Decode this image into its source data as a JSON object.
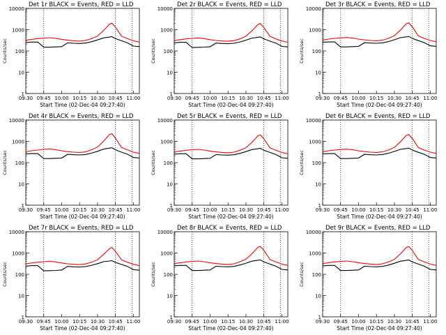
{
  "colors": {
    "background": "#ffffff",
    "events": "#000000",
    "lld": "#ff0000",
    "axes": "#000000"
  },
  "chart_data": [
    {
      "type": "line",
      "title": "Det 1r BLACK = Events, RED = LLD",
      "xlabel": "Start Time (02-Dec-04 09:27:40)",
      "ylabel": "Counts/sec",
      "yscale": "log",
      "ylim": [
        1,
        10000
      ],
      "x": [
        "09:30",
        "09:35",
        "09:40",
        "09:45",
        "09:50",
        "09:55",
        "10:00",
        "10:05",
        "10:10",
        "10:15",
        "10:20",
        "10:25",
        "10:30",
        "10:35",
        "10:40",
        "10:42",
        "10:45",
        "10:50",
        "10:55",
        "11:00",
        "11:05"
      ],
      "xticks": [
        "09:30",
        "09:45",
        "10:00",
        "10:15",
        "10:30",
        "10:45",
        "11:00"
      ],
      "yticks": [
        "1",
        "10",
        "100",
        "1000",
        "10000"
      ],
      "vlines": [
        "09:45",
        "10:45",
        "10:59"
      ],
      "series": [
        {
          "values": [
            320,
            350,
            380,
            400,
            420,
            390,
            350,
            320,
            300,
            290,
            310,
            380,
            500,
            900,
            1800,
            2000,
            1300,
            500,
            380,
            300,
            260
          ]
        },
        {
          "values": [
            250,
            260,
            260,
            150,
            150,
            155,
            160,
            240,
            230,
            225,
            235,
            270,
            330,
            410,
            450,
            470,
            380,
            300,
            240,
            170,
            160
          ]
        }
      ]
    },
    {
      "type": "line",
      "title": "Det 2r BLACK = Events, RED = LLD",
      "xlabel": "Start Time (02-Dec-04 09:27:40)",
      "ylabel": "Counts/sec",
      "yscale": "log",
      "ylim": [
        1,
        10000
      ],
      "x": [
        "09:30",
        "09:35",
        "09:40",
        "09:45",
        "09:50",
        "09:55",
        "10:00",
        "10:05",
        "10:10",
        "10:15",
        "10:20",
        "10:25",
        "10:30",
        "10:35",
        "10:40",
        "10:42",
        "10:45",
        "10:50",
        "10:55",
        "11:00",
        "11:05"
      ],
      "xticks": [
        "09:30",
        "09:45",
        "10:00",
        "10:15",
        "10:30",
        "10:45",
        "11:00"
      ],
      "yticks": [
        "1",
        "10",
        "100",
        "1000",
        "10000"
      ],
      "vlines": [
        "09:45",
        "10:45",
        "10:59"
      ],
      "series": [
        {
          "values": [
            310,
            340,
            370,
            390,
            410,
            380,
            340,
            310,
            295,
            285,
            305,
            370,
            490,
            880,
            1750,
            1950,
            1250,
            490,
            370,
            295,
            255
          ]
        },
        {
          "values": [
            240,
            255,
            255,
            145,
            148,
            152,
            158,
            235,
            225,
            220,
            230,
            265,
            320,
            400,
            440,
            460,
            370,
            290,
            235,
            165,
            155
          ]
        }
      ]
    },
    {
      "type": "line",
      "title": "Det 3r BLACK = Events, RED = LLD",
      "xlabel": "Start Time (02-Dec-04 09:27:40)",
      "ylabel": "Counts/sec",
      "yscale": "log",
      "ylim": [
        1,
        10000
      ],
      "x": [
        "09:30",
        "09:35",
        "09:40",
        "09:45",
        "09:50",
        "09:55",
        "10:00",
        "10:05",
        "10:10",
        "10:15",
        "10:20",
        "10:25",
        "10:30",
        "10:35",
        "10:40",
        "10:42",
        "10:45",
        "10:50",
        "10:55",
        "11:00",
        "11:05"
      ],
      "xticks": [
        "09:30",
        "09:45",
        "10:00",
        "10:15",
        "10:30",
        "10:45",
        "11:00"
      ],
      "yticks": [
        "1",
        "10",
        "100",
        "1000",
        "10000"
      ],
      "vlines": [
        "09:45",
        "10:45",
        "10:59"
      ],
      "series": [
        {
          "values": [
            330,
            360,
            390,
            410,
            430,
            400,
            360,
            330,
            310,
            300,
            320,
            390,
            520,
            950,
            1900,
            2100,
            1350,
            510,
            390,
            310,
            270
          ]
        },
        {
          "values": [
            255,
            265,
            265,
            155,
            155,
            160,
            165,
            245,
            235,
            230,
            240,
            275,
            335,
            420,
            460,
            480,
            390,
            305,
            245,
            175,
            165
          ]
        }
      ]
    },
    {
      "type": "line",
      "title": "Det 4r BLACK = Events, RED = LLD",
      "xlabel": "Start Time (02-Dec-04 09:27:40)",
      "ylabel": "Counts/sec",
      "yscale": "log",
      "ylim": [
        1,
        10000
      ],
      "x": [
        "09:30",
        "09:35",
        "09:40",
        "09:45",
        "09:50",
        "09:55",
        "10:00",
        "10:05",
        "10:10",
        "10:15",
        "10:20",
        "10:25",
        "10:30",
        "10:35",
        "10:40",
        "10:42",
        "10:45",
        "10:50",
        "10:55",
        "11:00",
        "11:05"
      ],
      "xticks": [
        "09:30",
        "09:45",
        "10:00",
        "10:15",
        "10:30",
        "10:45",
        "11:00"
      ],
      "yticks": [
        "1",
        "10",
        "100",
        "1000",
        "10000"
      ],
      "vlines": [
        "09:45",
        "10:45",
        "10:59"
      ],
      "series": [
        {
          "values": [
            330,
            360,
            390,
            420,
            440,
            400,
            360,
            330,
            310,
            300,
            320,
            400,
            540,
            1000,
            2100,
            2300,
            1400,
            520,
            400,
            310,
            270
          ]
        },
        {
          "values": [
            255,
            265,
            265,
            155,
            155,
            160,
            165,
            245,
            235,
            230,
            240,
            280,
            340,
            430,
            480,
            500,
            400,
            310,
            250,
            175,
            165
          ]
        }
      ]
    },
    {
      "type": "line",
      "title": "Det 5r BLACK = Events, RED = LLD",
      "xlabel": "Start Time (02-Dec-04 09:27:40)",
      "ylabel": "Counts/sec",
      "yscale": "log",
      "ylim": [
        1,
        10000
      ],
      "x": [
        "09:30",
        "09:35",
        "09:40",
        "09:45",
        "09:50",
        "09:55",
        "10:00",
        "10:05",
        "10:10",
        "10:15",
        "10:20",
        "10:25",
        "10:30",
        "10:35",
        "10:40",
        "10:42",
        "10:45",
        "10:50",
        "10:55",
        "11:00",
        "11:05"
      ],
      "xticks": [
        "09:30",
        "09:45",
        "10:00",
        "10:15",
        "10:30",
        "10:45",
        "11:00"
      ],
      "yticks": [
        "1",
        "10",
        "100",
        "1000",
        "10000"
      ],
      "vlines": [
        "09:45",
        "10:45",
        "10:59"
      ],
      "series": [
        {
          "values": [
            320,
            350,
            380,
            400,
            420,
            390,
            350,
            320,
            300,
            290,
            310,
            380,
            500,
            900,
            1800,
            2000,
            1300,
            500,
            380,
            300,
            260
          ]
        },
        {
          "values": [
            250,
            260,
            260,
            150,
            150,
            155,
            160,
            240,
            230,
            225,
            235,
            270,
            330,
            410,
            450,
            470,
            380,
            300,
            240,
            170,
            160
          ]
        }
      ]
    },
    {
      "type": "line",
      "title": "Det 6r BLACK = Events, RED = LLD",
      "xlabel": "Start Time (02-Dec-04 09:27:40)",
      "ylabel": "Counts/sec",
      "yscale": "log",
      "ylim": [
        1,
        10000
      ],
      "x": [
        "09:30",
        "09:35",
        "09:40",
        "09:45",
        "09:50",
        "09:55",
        "10:00",
        "10:05",
        "10:10",
        "10:15",
        "10:20",
        "10:25",
        "10:30",
        "10:35",
        "10:40",
        "10:42",
        "10:45",
        "10:50",
        "10:55",
        "11:00",
        "11:05"
      ],
      "xticks": [
        "09:30",
        "09:45",
        "10:00",
        "10:15",
        "10:30",
        "10:45",
        "11:00"
      ],
      "yticks": [
        "1",
        "10",
        "100",
        "1000",
        "10000"
      ],
      "vlines": [
        "09:45",
        "10:45",
        "10:59"
      ],
      "series": [
        {
          "values": [
            330,
            360,
            390,
            410,
            430,
            400,
            360,
            330,
            310,
            300,
            320,
            390,
            520,
            950,
            1900,
            2100,
            1350,
            510,
            390,
            310,
            270
          ]
        },
        {
          "values": [
            255,
            265,
            265,
            155,
            155,
            160,
            165,
            245,
            235,
            230,
            240,
            275,
            335,
            420,
            460,
            480,
            390,
            305,
            245,
            175,
            165
          ]
        }
      ]
    },
    {
      "type": "line",
      "title": "Det 7r BLACK = Events, RED = LLD",
      "xlabel": "Start Time (02-Dec-04 09:27:40)",
      "ylabel": "Counts/sec",
      "yscale": "log",
      "ylim": [
        1,
        10000
      ],
      "x": [
        "09:30",
        "09:35",
        "09:40",
        "09:45",
        "09:50",
        "09:55",
        "10:00",
        "10:05",
        "10:10",
        "10:15",
        "10:20",
        "10:25",
        "10:30",
        "10:35",
        "10:40",
        "10:42",
        "10:45",
        "10:50",
        "10:55",
        "11:00",
        "11:05"
      ],
      "xticks": [
        "09:30",
        "09:45",
        "10:00",
        "10:15",
        "10:30",
        "10:45",
        "11:00"
      ],
      "yticks": [
        "1",
        "10",
        "100",
        "1000",
        "10000"
      ],
      "vlines": [
        "09:45",
        "10:45",
        "10:59"
      ],
      "series": [
        {
          "values": [
            310,
            340,
            370,
            390,
            410,
            380,
            340,
            310,
            295,
            285,
            305,
            370,
            480,
            850,
            1600,
            1800,
            1200,
            480,
            370,
            295,
            255
          ]
        },
        {
          "values": [
            240,
            255,
            255,
            145,
            148,
            152,
            158,
            235,
            225,
            220,
            230,
            265,
            315,
            390,
            420,
            440,
            360,
            290,
            235,
            165,
            155
          ]
        }
      ]
    },
    {
      "type": "line",
      "title": "Det 8r BLACK = Events, RED = LLD",
      "xlabel": "Start Time (02-Dec-04 09:27:40)",
      "ylabel": "Counts/sec",
      "yscale": "log",
      "ylim": [
        1,
        10000
      ],
      "x": [
        "09:30",
        "09:35",
        "09:40",
        "09:45",
        "09:50",
        "09:55",
        "10:00",
        "10:05",
        "10:10",
        "10:15",
        "10:20",
        "10:25",
        "10:30",
        "10:35",
        "10:40",
        "10:42",
        "10:45",
        "10:50",
        "10:55",
        "11:00",
        "11:05"
      ],
      "xticks": [
        "09:30",
        "09:45",
        "10:00",
        "10:15",
        "10:30",
        "10:45",
        "11:00"
      ],
      "yticks": [
        "1",
        "10",
        "100",
        "1000",
        "10000"
      ],
      "vlines": [
        "09:45",
        "10:45",
        "10:59"
      ],
      "series": [
        {
          "values": [
            320,
            350,
            380,
            400,
            420,
            390,
            350,
            320,
            300,
            290,
            310,
            385,
            510,
            920,
            1850,
            2050,
            1320,
            500,
            380,
            300,
            260
          ]
        },
        {
          "values": [
            250,
            260,
            260,
            150,
            150,
            155,
            160,
            240,
            230,
            225,
            235,
            272,
            332,
            412,
            455,
            475,
            382,
            300,
            240,
            170,
            160
          ]
        }
      ]
    },
    {
      "type": "line",
      "title": "Det 9r BLACK = Events, RED = LLD",
      "xlabel": "Start Time (02-Dec-04 09:27:40)",
      "ylabel": "Counts/sec",
      "yscale": "log",
      "ylim": [
        1,
        10000
      ],
      "x": [
        "09:30",
        "09:35",
        "09:40",
        "09:45",
        "09:50",
        "09:55",
        "10:00",
        "10:05",
        "10:10",
        "10:15",
        "10:20",
        "10:25",
        "10:30",
        "10:35",
        "10:40",
        "10:42",
        "10:45",
        "10:50",
        "10:55",
        "11:00",
        "11:05"
      ],
      "xticks": [
        "09:30",
        "09:45",
        "10:00",
        "10:15",
        "10:30",
        "10:45",
        "11:00"
      ],
      "yticks": [
        "1",
        "10",
        "100",
        "1000",
        "10000"
      ],
      "vlines": [
        "09:45",
        "10:45",
        "10:59"
      ],
      "series": [
        {
          "values": [
            320,
            350,
            380,
            400,
            420,
            390,
            350,
            320,
            300,
            290,
            310,
            380,
            500,
            900,
            1800,
            2000,
            1300,
            500,
            380,
            300,
            260
          ]
        },
        {
          "values": [
            250,
            260,
            260,
            150,
            150,
            155,
            160,
            240,
            230,
            225,
            235,
            270,
            330,
            410,
            450,
            470,
            380,
            300,
            240,
            170,
            160
          ]
        }
      ]
    }
  ]
}
